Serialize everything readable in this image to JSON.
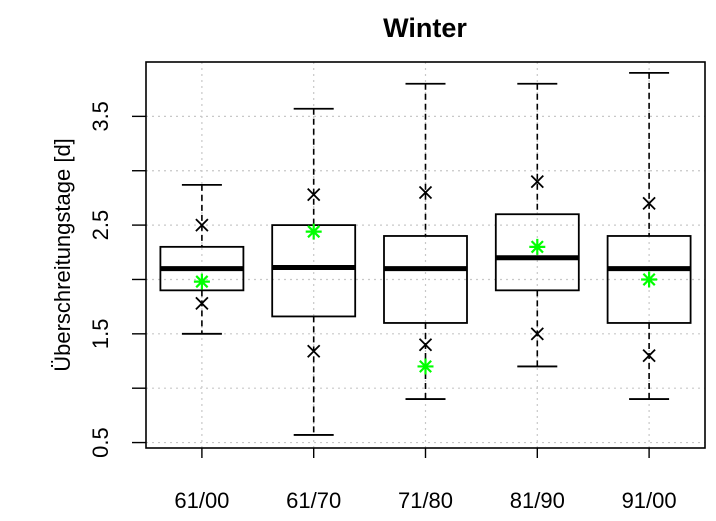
{
  "chart_data": {
    "type": "box",
    "title": "Winter",
    "xlabel": "",
    "ylabel": "Überschreitungstage [d]",
    "ylim": [
      0.45,
      4.0
    ],
    "yticks": [
      0.5,
      1.5,
      2.5,
      3.5
    ],
    "yticks_minor": [
      1.0,
      2.0,
      3.0
    ],
    "grid": true,
    "categories": [
      "61/00",
      "61/70",
      "71/80",
      "81/90",
      "91/00"
    ],
    "boxes": [
      {
        "whisker_low": 1.5,
        "q1": 1.9,
        "median": 2.1,
        "q3": 2.3,
        "whisker_high": 2.87,
        "cross_low": 1.78,
        "cross_high": 2.5,
        "star": 1.98
      },
      {
        "whisker_low": 0.57,
        "q1": 1.66,
        "median": 2.11,
        "q3": 2.5,
        "whisker_high": 3.57,
        "cross_low": 1.34,
        "cross_high": 2.78,
        "star": 2.44
      },
      {
        "whisker_low": 0.9,
        "q1": 1.6,
        "median": 2.1,
        "q3": 2.4,
        "whisker_high": 3.8,
        "cross_low": 1.4,
        "cross_high": 2.8,
        "star": 1.2
      },
      {
        "whisker_low": 1.2,
        "q1": 1.9,
        "median": 2.2,
        "q3": 2.6,
        "whisker_high": 3.8,
        "cross_low": 1.5,
        "cross_high": 2.9,
        "star": 2.3
      },
      {
        "whisker_low": 0.9,
        "q1": 1.6,
        "median": 2.1,
        "q3": 2.4,
        "whisker_high": 3.9,
        "cross_low": 1.3,
        "cross_high": 2.7,
        "star": 2.0
      }
    ],
    "colors": {
      "box": "#000000",
      "star": "#00ff00",
      "grid": "#c8c8c8"
    }
  }
}
